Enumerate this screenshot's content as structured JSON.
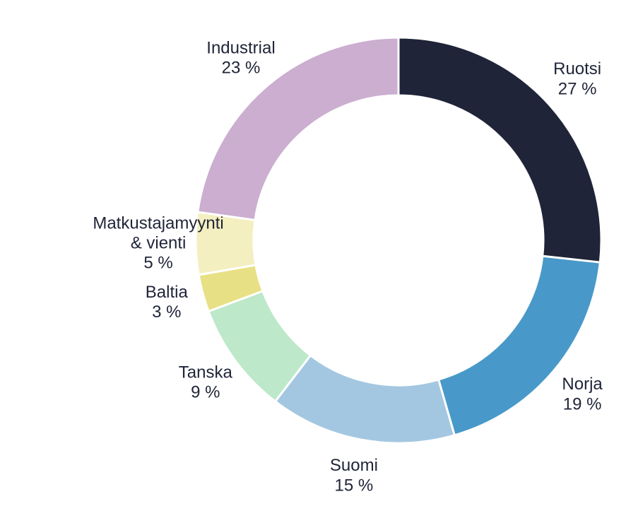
{
  "chart_data": {
    "type": "donut",
    "categories": [
      "Ruotsi",
      "Norja",
      "Suomi",
      "Tanska",
      "Baltia",
      "Matkustajamyynti\n& vienti",
      "Industrial"
    ],
    "values": [
      27,
      19,
      15,
      9,
      3,
      5,
      23
    ],
    "value_labels": [
      "27 %",
      "19 %",
      "15 %",
      "9 %",
      "3 %",
      "5 %",
      "23 %"
    ],
    "colors": [
      "#1f2438",
      "#4899c9",
      "#a3c7e1",
      "#bde8c9",
      "#e8e084",
      "#f4efc0",
      "#cbaed0"
    ]
  }
}
